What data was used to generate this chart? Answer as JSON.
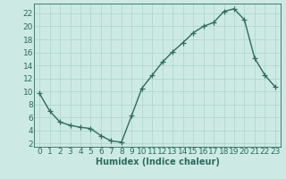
{
  "x": [
    0,
    1,
    2,
    3,
    4,
    5,
    6,
    7,
    8,
    9,
    10,
    11,
    12,
    13,
    14,
    15,
    16,
    17,
    18,
    19,
    20,
    21,
    22,
    23
  ],
  "y": [
    9.7,
    7.0,
    5.3,
    4.8,
    4.5,
    4.3,
    3.2,
    2.4,
    2.2,
    6.3,
    10.5,
    12.5,
    14.5,
    16.1,
    17.5,
    19.0,
    20.0,
    20.6,
    22.3,
    22.7,
    21.0,
    15.1,
    12.5,
    10.7
  ],
  "line_color": "#2d6b5e",
  "marker": "+",
  "markersize": 4,
  "linewidth": 1.0,
  "bg_color": "#cceae3",
  "grid_color": "#b0d8cf",
  "xlabel": "Humidex (Indice chaleur)",
  "xlim": [
    -0.5,
    23.5
  ],
  "ylim": [
    1.5,
    23.5
  ],
  "yticks": [
    2,
    4,
    6,
    8,
    10,
    12,
    14,
    16,
    18,
    20,
    22
  ],
  "xticks": [
    0,
    1,
    2,
    3,
    4,
    5,
    6,
    7,
    8,
    9,
    10,
    11,
    12,
    13,
    14,
    15,
    16,
    17,
    18,
    19,
    20,
    21,
    22,
    23
  ],
  "xlabel_fontsize": 7,
  "tick_fontsize": 6.5
}
